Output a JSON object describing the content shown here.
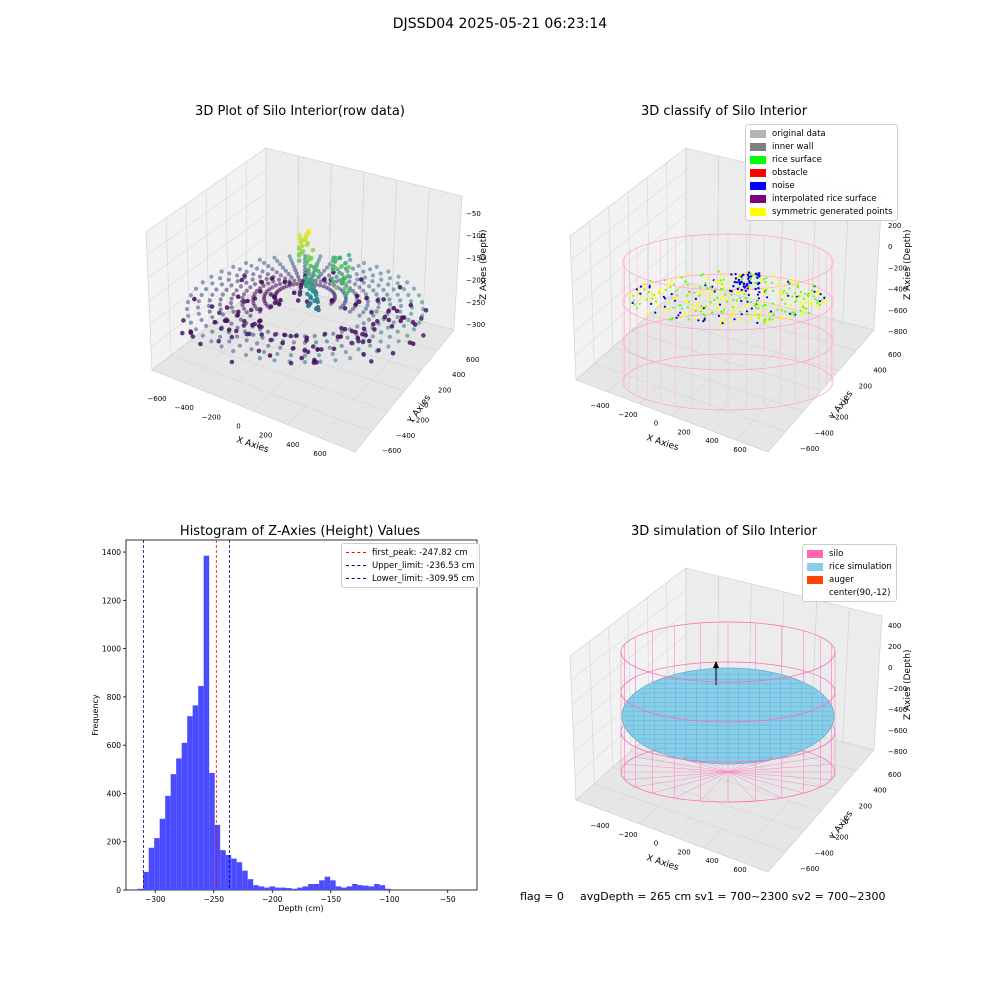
{
  "suptitle": "DJSSD04 2025-05-21 06:23:14",
  "footer": {
    "flag": "flag = 0",
    "stats": "avgDepth = 265 cm  sv1 = 700~2300  sv2 = 700~2300"
  },
  "chart_data": [
    {
      "type": "scatter3d",
      "title": "3D Plot of Silo Interior(row data)",
      "xlabel": "X Axies",
      "ylabel": "Y Axies",
      "zlabel": "Z Axies (Depth)",
      "xticks": [
        "−600",
        "−400",
        "−200",
        "0",
        "200",
        "400",
        "600"
      ],
      "yticks": [
        "−600",
        "−400",
        "−200",
        "0",
        "200",
        "400",
        "600"
      ],
      "zticks": [
        "−50",
        "−100",
        "−150",
        "−200",
        "−250",
        "−300"
      ],
      "colormap": "viridis"
    },
    {
      "type": "scatter3d",
      "title": "3D classify of Silo Interior",
      "xlabel": "X Axies",
      "ylabel": "Y Axies",
      "zlabel": "Z Axies (Depth)",
      "xticks": [
        "−400",
        "−200",
        "0",
        "200",
        "400",
        "600"
      ],
      "yticks": [
        "−600",
        "−400",
        "−200",
        "0",
        "200",
        "400",
        "600"
      ],
      "zticks": [
        "200",
        "0",
        "−200",
        "−400",
        "−600",
        "−800"
      ],
      "legend": [
        {
          "label": "original data",
          "color": "#b3b3b3"
        },
        {
          "label": "inner wall",
          "color": "#808080"
        },
        {
          "label": "rice surface",
          "color": "#00ff00"
        },
        {
          "label": "obstacle",
          "color": "#ff0000"
        },
        {
          "label": "noise",
          "color": "#0000ff"
        },
        {
          "label": "interpolated rice surface",
          "color": "#800080"
        },
        {
          "label": "symmetric generated points",
          "color": "#ffff00"
        }
      ]
    },
    {
      "type": "bar",
      "title": "Histogram of Z-Axies (Height) Values",
      "xlabel": "Depth (cm)",
      "ylabel": "Frequency",
      "xlim": [
        -325,
        -25
      ],
      "ylim": [
        0,
        1450
      ],
      "xticks": [
        -300,
        -250,
        -200,
        -150,
        -100,
        -50
      ],
      "xtick_labels": [
        "−300",
        "−250",
        "−200",
        "−150",
        "−100",
        "−50"
      ],
      "yticks": [
        0,
        200,
        400,
        600,
        800,
        1000,
        1200,
        1400
      ],
      "bar_color": "#4b4bff",
      "bin_start": -315,
      "bin_width": 4.7,
      "values": [
        5,
        75,
        175,
        215,
        295,
        390,
        480,
        545,
        610,
        720,
        765,
        845,
        1385,
        485,
        270,
        165,
        145,
        130,
        115,
        80,
        45,
        20,
        15,
        10,
        15,
        10,
        10,
        8,
        5,
        10,
        15,
        25,
        25,
        40,
        55,
        40,
        15,
        10,
        15,
        25,
        20,
        18,
        15,
        25,
        20,
        5
      ],
      "lines": [
        {
          "label": "first_peak: -247.82 cm",
          "x": -247.82,
          "color": "#ff0000"
        },
        {
          "label": "Upper_limit: -236.53 cm",
          "x": -236.53,
          "color": "#00008b"
        },
        {
          "label": "Lower_limit: -309.95 cm",
          "x": -309.95,
          "color": "#00008b"
        }
      ]
    },
    {
      "type": "surface3d",
      "title": "3D simulation of Silo Interior",
      "xlabel": "X Axies",
      "ylabel": "Y Axies",
      "zlabel": "Z Axies (Depth)",
      "xticks": [
        "−400",
        "−200",
        "0",
        "200",
        "400",
        "600"
      ],
      "yticks": [
        "−600",
        "−400",
        "−200",
        "0",
        "200",
        "400",
        "600"
      ],
      "zticks": [
        "400",
        "200",
        "0",
        "−200",
        "−400",
        "−600",
        "−800"
      ],
      "legend": [
        {
          "label": "silo",
          "color": "#ff69b4"
        },
        {
          "label": "rice simulation",
          "color": "#87ceeb"
        },
        {
          "label": "auger",
          "color": "#ff4500"
        },
        {
          "label": "center(90,-12)",
          "color": ""
        }
      ]
    }
  ]
}
